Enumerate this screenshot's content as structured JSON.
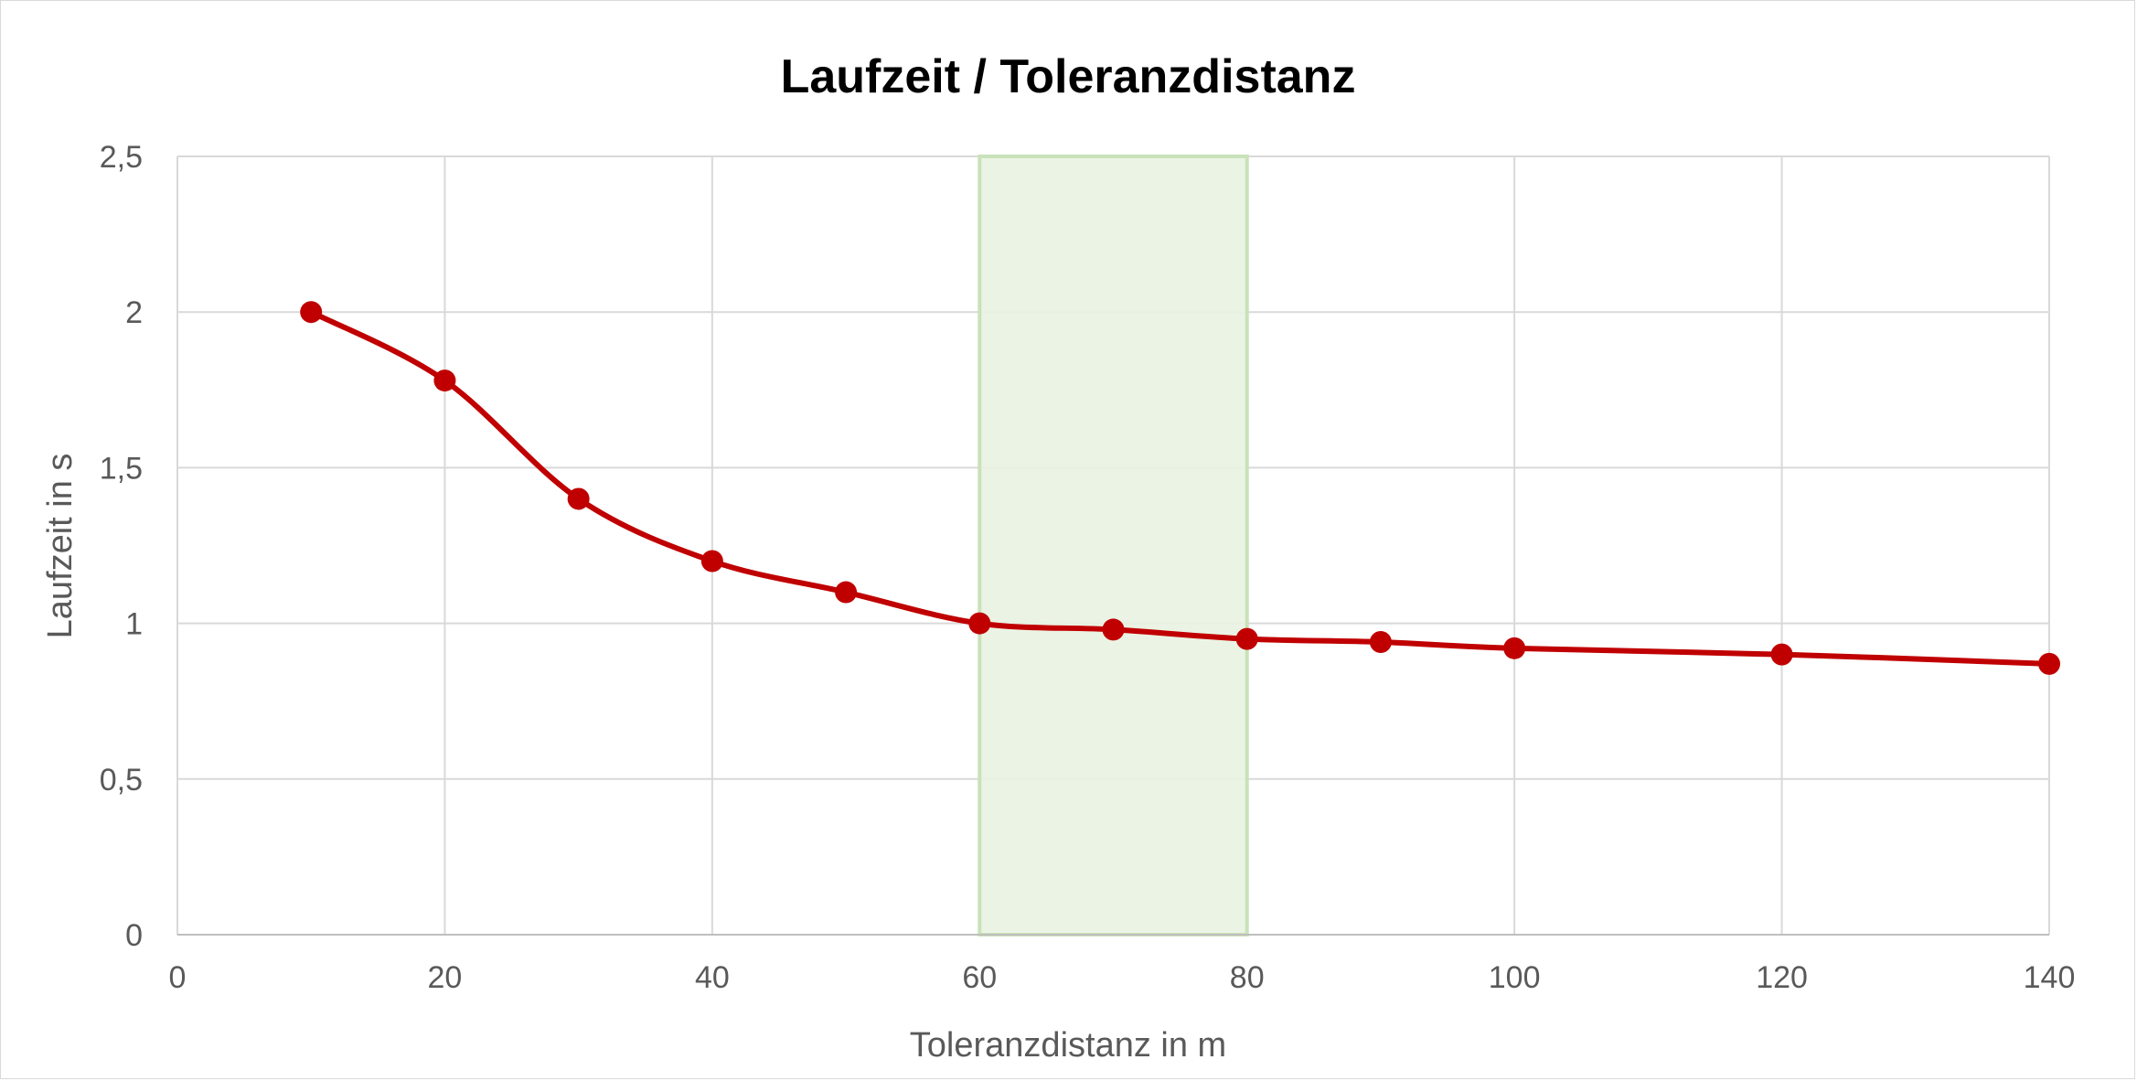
{
  "chart_data": {
    "type": "line",
    "title": "Laufzeit / Toleranzdistanz",
    "xlabel": "Toleranzdistanz in m",
    "ylabel": "Laufzeit in s",
    "xlim": [
      0,
      140
    ],
    "ylim": [
      0,
      2.5
    ],
    "x_ticks": [
      "0",
      "20",
      "40",
      "60",
      "80",
      "100",
      "120",
      "140"
    ],
    "y_ticks": [
      "0",
      "0,5",
      "1",
      "1,5",
      "2",
      "2,5"
    ],
    "grid": true,
    "smoothed": true,
    "highlight_band": {
      "x_from": 60,
      "x_to": 80,
      "color": "#e9f3e1",
      "border_color": "#c9e2b9"
    },
    "series": [
      {
        "color": "#c00000",
        "x": [
          10,
          20,
          30,
          40,
          50,
          60,
          70,
          80,
          90,
          100,
          120,
          140
        ],
        "y": [
          2.0,
          1.78,
          1.4,
          1.2,
          1.1,
          1.0,
          0.98,
          0.95,
          0.94,
          0.92,
          0.9,
          0.87
        ]
      }
    ]
  }
}
